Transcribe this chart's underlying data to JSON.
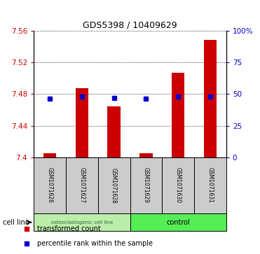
{
  "title": "GDS5398 / 10409629",
  "samples": [
    "GSM1071626",
    "GSM1071627",
    "GSM1071628",
    "GSM1071629",
    "GSM1071630",
    "GSM1071631"
  ],
  "bar_base": 7.4,
  "bar_tops": [
    7.405,
    7.487,
    7.464,
    7.405,
    7.507,
    7.548
  ],
  "percentile_values": [
    7.474,
    7.477,
    7.475,
    7.474,
    7.477,
    7.477
  ],
  "ylim_left": [
    7.4,
    7.56
  ],
  "ylim_right": [
    0,
    100
  ],
  "yticks_left": [
    7.4,
    7.44,
    7.48,
    7.52,
    7.56
  ],
  "yticks_right": [
    0,
    25,
    50,
    75,
    100
  ],
  "ytick_labels_left": [
    "7.4",
    "7.44",
    "7.48",
    "7.52",
    "7.56"
  ],
  "ytick_labels_right": [
    "0",
    "25",
    "50",
    "75",
    "100%"
  ],
  "bar_color": "#cc0000",
  "percentile_color": "#0000cc",
  "group1_label": "osteoclastogenic cell line",
  "group2_label": "control",
  "group1_indices": [
    0,
    1,
    2
  ],
  "group2_indices": [
    3,
    4,
    5
  ],
  "group1_color": "#bbeeaa",
  "group2_color": "#55ee55",
  "cell_line_label": "cell line",
  "legend_red": "transformed count",
  "legend_blue": "percentile rank within the sample",
  "background_label": "#cccccc",
  "bar_width": 0.4
}
